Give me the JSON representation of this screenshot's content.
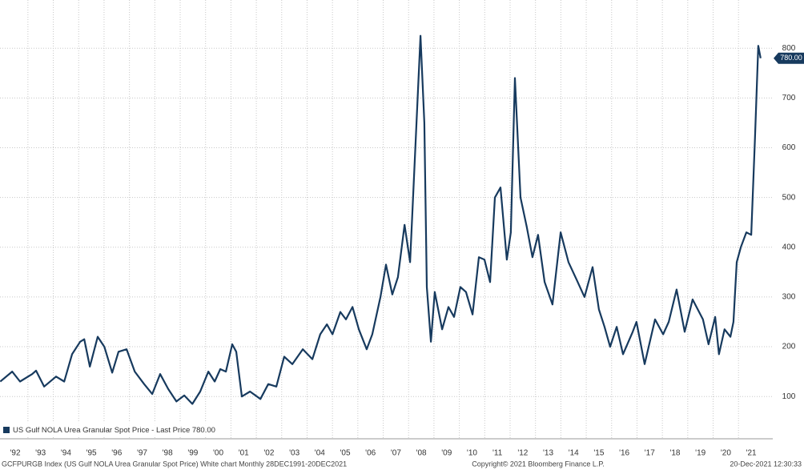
{
  "chart_data": {
    "type": "line",
    "series": [
      {
        "name": "US Gulf NOLA Urea Granular Spot Price - Last Price 780.00",
        "color": "#173a5e",
        "values": [
          130,
          150,
          130,
          145,
          152,
          120,
          140,
          130,
          185,
          210,
          215,
          160,
          220,
          200,
          148,
          190,
          195,
          150,
          125,
          105,
          145,
          115,
          90,
          102,
          85,
          110,
          150,
          130,
          155,
          150,
          205,
          190,
          100,
          110,
          95,
          125,
          120,
          180,
          165,
          195,
          175,
          225,
          245,
          225,
          270,
          255,
          280,
          235,
          195,
          225,
          300,
          365,
          305,
          340,
          445,
          370,
          650,
          825,
          650,
          320,
          210,
          310,
          235,
          280,
          260,
          320,
          310,
          265,
          380,
          375,
          330,
          500,
          520,
          375,
          430,
          740,
          500,
          440,
          380,
          425,
          330,
          285,
          430,
          370,
          335,
          300,
          360,
          275,
          240,
          200,
          240,
          185,
          230,
          250,
          165,
          255,
          225,
          250,
          315,
          230,
          295,
          255,
          205,
          260,
          185,
          235,
          220,
          250,
          370,
          400,
          430,
          425,
          620,
          805,
          780
        ]
      }
    ],
    "x": [
      1991.91,
      1992.38,
      1992.69,
      1993.17,
      1993.32,
      1993.64,
      1994.11,
      1994.43,
      1994.74,
      1995.06,
      1995.22,
      1995.44,
      1995.75,
      1996.01,
      1996.32,
      1996.57,
      1996.89,
      1997.21,
      1997.58,
      1997.9,
      1998.21,
      1998.53,
      1998.85,
      1999.16,
      1999.48,
      1999.79,
      2000.11,
      2000.36,
      2000.58,
      2000.8,
      2001.05,
      2001.21,
      2001.43,
      2001.75,
      2002.16,
      2002.47,
      2002.79,
      2003.1,
      2003.42,
      2003.83,
      2004.21,
      2004.52,
      2004.78,
      2005,
      2005.31,
      2005.53,
      2005.79,
      2006.04,
      2006.35,
      2006.57,
      2006.89,
      2007.11,
      2007.36,
      2007.58,
      2007.84,
      2008.06,
      2008.31,
      2008.47,
      2008.62,
      2008.72,
      2008.88,
      2009.03,
      2009.32,
      2009.57,
      2009.79,
      2010.04,
      2010.26,
      2010.52,
      2010.77,
      2010.99,
      2011.21,
      2011.4,
      2011.62,
      2011.87,
      2012.03,
      2012.19,
      2012.41,
      2012.66,
      2012.88,
      2013.1,
      2013.36,
      2013.67,
      2013.99,
      2014.3,
      2014.62,
      2014.93,
      2015.25,
      2015.5,
      2015.72,
      2015.94,
      2016.2,
      2016.45,
      2016.83,
      2016.98,
      2017.3,
      2017.71,
      2018.03,
      2018.25,
      2018.56,
      2018.88,
      2019.19,
      2019.6,
      2019.82,
      2020.08,
      2020.23,
      2020.45,
      2020.68,
      2020.8,
      2020.93,
      2021.09,
      2021.31,
      2021.5,
      2021.65,
      2021.78,
      2021.87
    ],
    "xlim": [
      1991.9,
      2022.35
    ],
    "xticks": [
      {
        "value": 1992,
        "label": "'92"
      },
      {
        "value": 1993,
        "label": "'93"
      },
      {
        "value": 1994,
        "label": "'94"
      },
      {
        "value": 1995,
        "label": "'95"
      },
      {
        "value": 1996,
        "label": "'96"
      },
      {
        "value": 1997,
        "label": "'97"
      },
      {
        "value": 1998,
        "label": "'98"
      },
      {
        "value": 1999,
        "label": "'99"
      },
      {
        "value": 2000,
        "label": "'00"
      },
      {
        "value": 2001,
        "label": "'01"
      },
      {
        "value": 2002,
        "label": "'02"
      },
      {
        "value": 2003,
        "label": "'03"
      },
      {
        "value": 2004,
        "label": "'04"
      },
      {
        "value": 2005,
        "label": "'05"
      },
      {
        "value": 2006,
        "label": "'06"
      },
      {
        "value": 2007,
        "label": "'07"
      },
      {
        "value": 2008,
        "label": "'08"
      },
      {
        "value": 2009,
        "label": "'09"
      },
      {
        "value": 2010,
        "label": "'10"
      },
      {
        "value": 2011,
        "label": "'11"
      },
      {
        "value": 2012,
        "label": "'12"
      },
      {
        "value": 2013,
        "label": "'13"
      },
      {
        "value": 2014,
        "label": "'14"
      },
      {
        "value": 2015,
        "label": "'15"
      },
      {
        "value": 2016,
        "label": "'16"
      },
      {
        "value": 2017,
        "label": "'17"
      },
      {
        "value": 2018,
        "label": "'18"
      },
      {
        "value": 2019,
        "label": "'19"
      },
      {
        "value": 2020,
        "label": "'20"
      },
      {
        "value": 2021,
        "label": "'21"
      }
    ],
    "ylim": [
      15,
      897
    ],
    "yticks": [
      100,
      200,
      300,
      400,
      500,
      600,
      700,
      800
    ],
    "grid": true,
    "last_price": {
      "value": 780,
      "label": "780.00"
    },
    "footer": {
      "left": "GCFPURGB Index (US Gulf NOLA Urea Granular Spot Price) White chart  Monthly 28DEC1991-20DEC2021",
      "center": "Copyright© 2021 Bloomberg Finance L.P.",
      "right": "20-Dec-2021 12:30:33"
    }
  }
}
